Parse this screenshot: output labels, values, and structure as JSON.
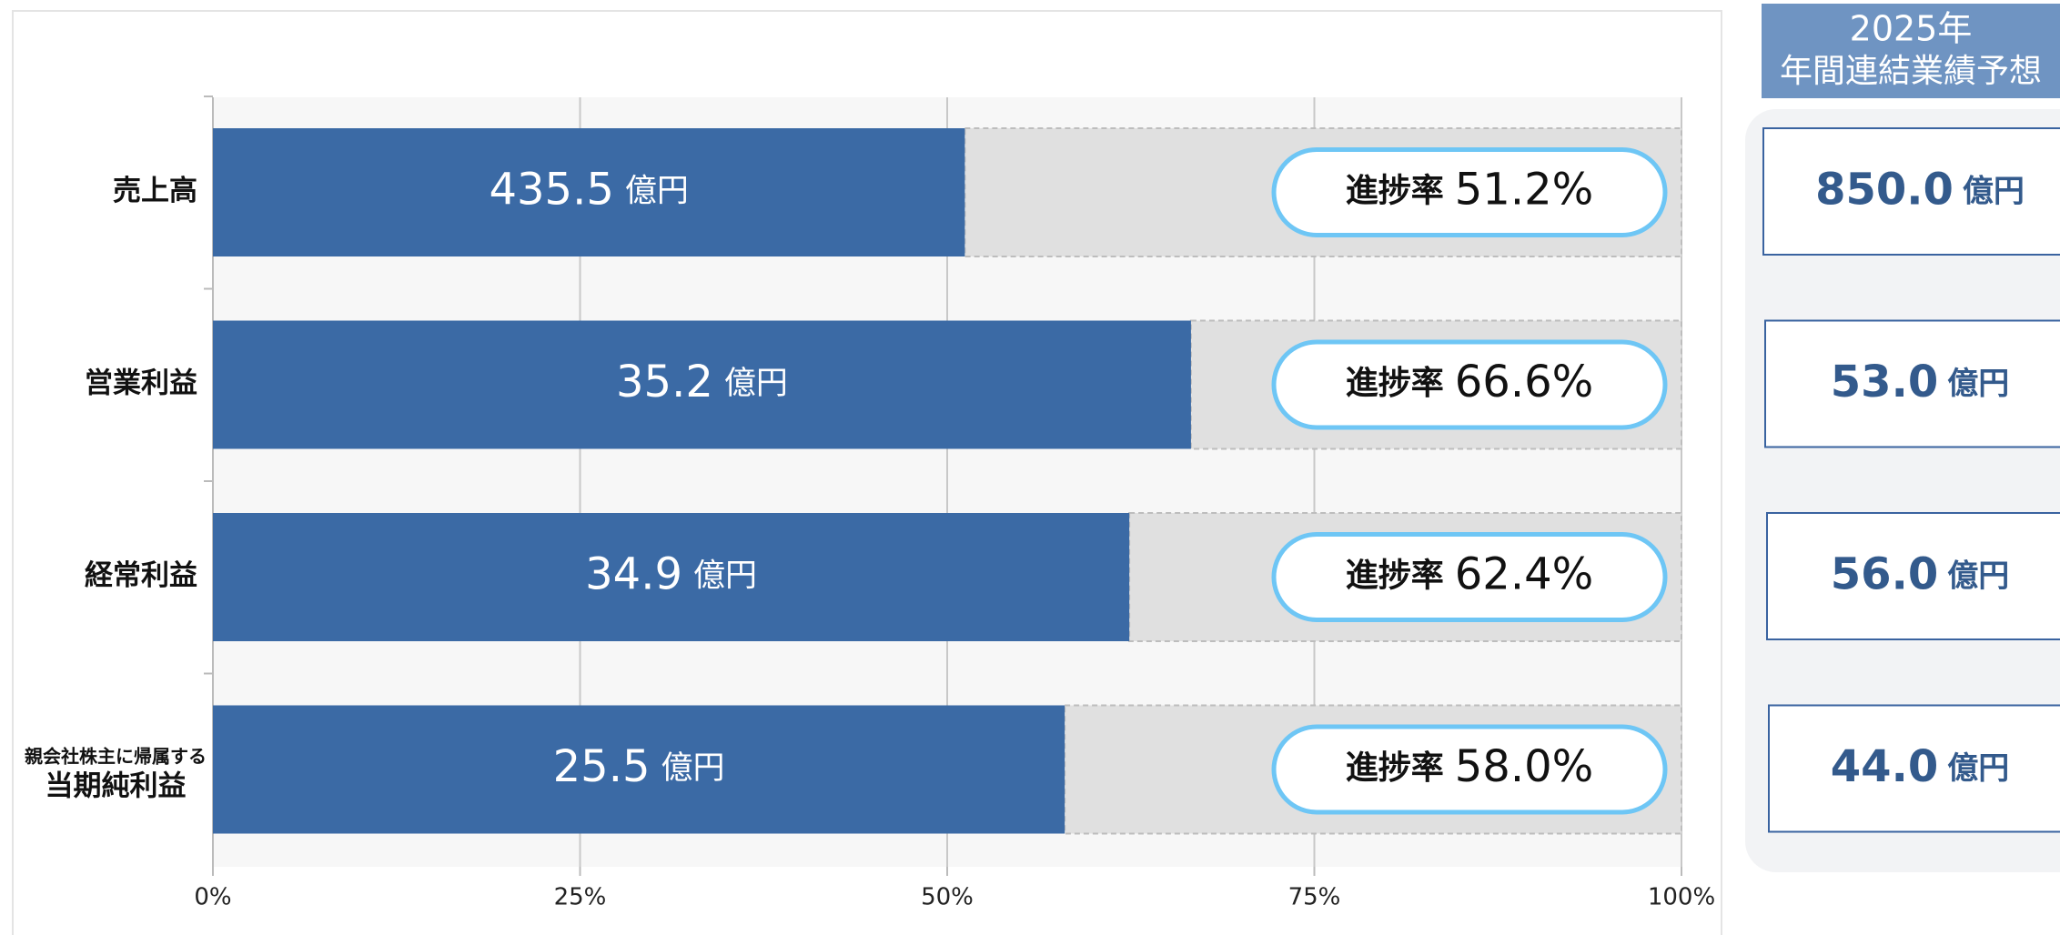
{
  "chart_data": {
    "type": "progress-bar",
    "categories": [
      "売上高",
      "営業利益",
      "経常利益",
      [
        "親会社株主に帰属する",
        "当期純利益"
      ]
    ],
    "values": [
      51.2,
      66.6,
      62.4,
      58.0
    ],
    "value_labels": [
      "51.2%",
      "66.6%",
      "62.4%",
      "58.0%"
    ],
    "progress_label": "進捗率",
    "actuals": [
      "435.5",
      "35.2",
      "34.9",
      "25.5"
    ],
    "unit": "億円",
    "color": "#3b6aa5",
    "remainder_color": "#e0e0e0",
    "xlim": [
      0,
      100
    ],
    "xticks": [
      {
        "value": 0,
        "label": "0%"
      },
      {
        "value": 25,
        "label": "25%"
      },
      {
        "value": 50,
        "label": "50%"
      },
      {
        "value": 75,
        "label": "75%"
      },
      {
        "value": 100,
        "label": "100%"
      }
    ],
    "grid": true,
    "forecast": {
      "title": [
        "2025年",
        "年間連結業績予想"
      ],
      "values": [
        "850.0",
        "53.0",
        "56.0",
        "44.0"
      ]
    }
  }
}
